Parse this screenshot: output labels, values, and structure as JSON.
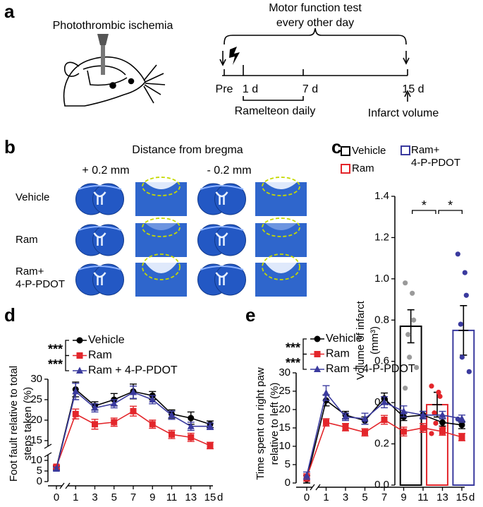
{
  "panel_a": {
    "label": "a",
    "title": "Photothrombic ischemia",
    "timeline_title": [
      "Motor function test",
      "every other day"
    ],
    "timepoints": [
      "Pre",
      "1 d",
      "7 d",
      "15 d"
    ],
    "treatment": "Ramelteon daily",
    "endpoint": "Infarct volume"
  },
  "panel_b": {
    "label": "b",
    "title": "Distance from bregma",
    "columns": [
      "+ 0.2 mm",
      "- 0.2 mm"
    ],
    "rows": [
      "Vehicle",
      "Ram",
      "Ram+\n4-P-PDOT"
    ]
  },
  "chart_data": [
    {
      "type": "bar",
      "label": "c",
      "ylabel": [
        "Volume of infarct",
        "(mm³)"
      ],
      "ylim": [
        0,
        1.4
      ],
      "yticks": [
        {
          "value": 0,
          "label": "0.0"
        },
        0.2,
        0.4,
        0.6,
        0.8,
        {
          "value": 1,
          "label": "1.0"
        },
        1.2,
        1.4
      ],
      "series": [
        {
          "name": "Vehicle",
          "color": "#000000",
          "point_color": "#9a9a9a",
          "values": [
            0.77
          ],
          "errors": [
            0.08
          ],
          "points": [
            0.98,
            0.93,
            0.8,
            0.73,
            0.62,
            0.57,
            0.47
          ]
        },
        {
          "name": "Ram",
          "color": "#e3262b",
          "point_color": "#e3262b",
          "values": [
            0.39
          ],
          "errors": [
            0.06
          ],
          "points": [
            0.48,
            0.45,
            0.43,
            0.35,
            0.3,
            0.28,
            0.25
          ]
        },
        {
          "name": "Ram+\n4-P-PDOT",
          "color": "#3a3a9e",
          "point_color": "#3a3a9e",
          "values": [
            0.75
          ],
          "errors": [
            0.12
          ],
          "points": [
            1.12,
            1.03,
            0.92,
            0.78,
            0.62,
            0.55,
            0.32
          ]
        }
      ],
      "annotations": [
        "*",
        "*"
      ]
    },
    {
      "type": "line",
      "label": "d",
      "ylabel": [
        "Foot fault relative to total",
        "steps taken (%)"
      ],
      "xlabel": "d",
      "categories": [
        "0",
        "1",
        "3",
        "5",
        "7",
        "9",
        "11",
        "13",
        "15"
      ],
      "ylim": [
        0,
        30
      ],
      "ybreak": [
        10,
        15
      ],
      "yticks": [
        0,
        5,
        10,
        15,
        20,
        25,
        30
      ],
      "series": [
        {
          "name": "Vehicle",
          "color": "#000000",
          "marker": "circle",
          "values": [
            6.5,
            27.5,
            23.5,
            25,
            27,
            26,
            21.5,
            20.5,
            19
          ],
          "errors": [
            0.8,
            1.8,
            1,
            1.5,
            1.8,
            1,
            1,
            1.5,
            0.8
          ]
        },
        {
          "name": "Ram",
          "color": "#e3262b",
          "marker": "square",
          "values": [
            7,
            21.5,
            19,
            19.5,
            22.2,
            19,
            16.5,
            15.8,
            13.8
          ],
          "errors": [
            0.8,
            1.2,
            1.2,
            1,
            1.2,
            1,
            1,
            1,
            0.8
          ]
        },
        {
          "name": "Ram + 4-P-PDOT",
          "color": "#3a3a9e",
          "marker": "triangle",
          "values": [
            6,
            27,
            23,
            24,
            26.8,
            25,
            21.2,
            18.5,
            18.5
          ],
          "errors": [
            0.8,
            2,
            1,
            1,
            1.5,
            1,
            1,
            1,
            0.8
          ]
        }
      ],
      "annotations": [
        "***",
        "***"
      ]
    },
    {
      "type": "line",
      "label": "e",
      "ylabel": [
        "Time spent on right paw",
        "relative to left (%)"
      ],
      "xlabel": "d",
      "categories": [
        "0",
        "1",
        "3",
        "5",
        "7",
        "9",
        "11",
        "13",
        "15"
      ],
      "ylim": [
        0,
        30
      ],
      "yticks": [
        0,
        5,
        10,
        15,
        20,
        25,
        30
      ],
      "series": [
        {
          "name": "Vehicle",
          "color": "#000000",
          "marker": "circle",
          "values": [
            1,
            22.5,
            18.5,
            17,
            23,
            18,
            18.5,
            16.5,
            15.8
          ],
          "errors": [
            1,
            1.5,
            1,
            1,
            1.5,
            1,
            1,
            1,
            1
          ]
        },
        {
          "name": "Ram",
          "color": "#e3262b",
          "marker": "square",
          "values": [
            1.5,
            16.5,
            15.2,
            13.8,
            17.2,
            14,
            15,
            14,
            12.5
          ],
          "errors": [
            1,
            1,
            1,
            1,
            1.2,
            1.2,
            1.2,
            1,
            1
          ]
        },
        {
          "name": "Ram + 4-P-PDOT",
          "color": "#3a3a9e",
          "marker": "triangle",
          "values": [
            2,
            24.5,
            18,
            17.5,
            22,
            19.5,
            18.5,
            18.5,
            17.5
          ],
          "errors": [
            1,
            2,
            1,
            1.5,
            1.5,
            1.5,
            1,
            1,
            1
          ]
        }
      ],
      "annotations": [
        "***",
        "***"
      ]
    }
  ]
}
